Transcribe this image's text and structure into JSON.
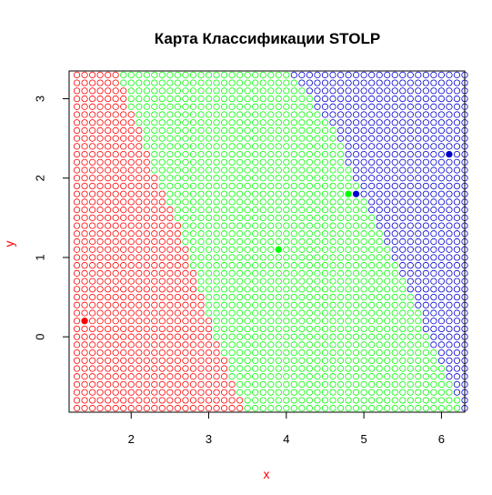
{
  "chart_data": {
    "type": "scatter",
    "title": "Карта Классификации STOLP",
    "xlabel": "x",
    "ylabel": "y",
    "xlim": [
      1.2,
      6.3
    ],
    "ylim": [
      -0.95,
      3.35
    ],
    "x_ticks": [
      2,
      3,
      4,
      5,
      6
    ],
    "y_ticks": [
      0,
      1,
      2,
      3
    ],
    "grid": false,
    "legend": "none",
    "axis_label_color": "#ff0000",
    "classes": [
      {
        "color": "#ff0000"
      },
      {
        "color": "#00ff00"
      },
      {
        "color": "#0000cd"
      }
    ],
    "classification_grid": {
      "x_start": 1.3,
      "x_end": 6.3,
      "y_start": -0.9,
      "y_end": 3.3,
      "step": 0.1,
      "marker": "open-circle"
    },
    "boundaries": {
      "red_green": [
        [
          -0.9,
          3.45
        ],
        [
          0.1,
          3.05
        ],
        [
          1.3,
          2.65
        ],
        [
          2.2,
          2.25
        ],
        [
          3.3,
          1.85
        ]
      ],
      "green_blue": [
        [
          -0.9,
          6.25
        ],
        [
          0.2,
          5.75
        ],
        [
          1.3,
          5.25
        ],
        [
          2.0,
          4.85
        ],
        [
          2.6,
          4.65
        ],
        [
          3.3,
          4.05
        ]
      ]
    },
    "points": [
      {
        "x": 1.4,
        "y": 0.2,
        "class": 0
      },
      {
        "x": 3.9,
        "y": 1.1,
        "class": 1
      },
      {
        "x": 4.8,
        "y": 1.8,
        "class": 1
      },
      {
        "x": 4.9,
        "y": 1.8,
        "class": 2
      },
      {
        "x": 6.1,
        "y": 2.3,
        "class": 2
      }
    ]
  }
}
